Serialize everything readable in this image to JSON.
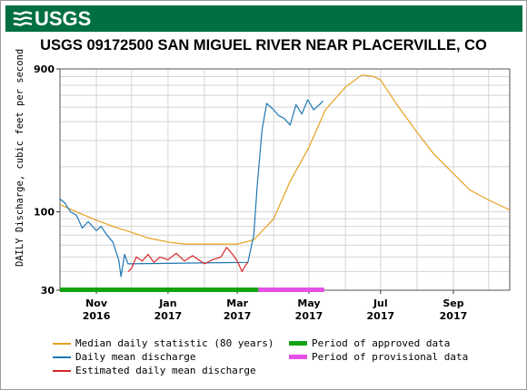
{
  "header": {
    "logo_text": "USGS",
    "title": "USGS 09172500 SAN MIGUEL RIVER NEAR PLACERVILLE, CO"
  },
  "colors": {
    "banner": "#006f41",
    "median": "#e6a01e",
    "mean": "#1f77b4",
    "estimated": "#d62728",
    "approved": "#12a312",
    "provisional": "#e64fe6"
  },
  "chart_data": {
    "type": "line",
    "title": "USGS 09172500 SAN MIGUEL RIVER NEAR PLACERVILLE, CO",
    "ylabel": "DAILY Discharge, cubic feet per second",
    "yscale": "log",
    "ylim": [
      30,
      900
    ],
    "y_ticks": [
      "30",
      "100",
      "900"
    ],
    "x_ticks": [
      {
        "date": "2016-11-01",
        "label1": "Nov",
        "label2": "2016"
      },
      {
        "date": "2017-01-01",
        "label1": "Jan",
        "label2": "2017"
      },
      {
        "date": "2017-03-01",
        "label1": "Mar",
        "label2": "2017"
      },
      {
        "date": "2017-05-01",
        "label1": "May",
        "label2": "2017"
      },
      {
        "date": "2017-07-01",
        "label1": "Jul",
        "label2": "2017"
      },
      {
        "date": "2017-09-01",
        "label1": "Sep",
        "label2": "2017"
      }
    ],
    "xlim": [
      "2016-10-01",
      "2017-10-19"
    ],
    "grid": true,
    "legend_position": "bottom",
    "series": [
      {
        "name": "Median daily statistic (80 years)",
        "color": "#e6a01e",
        "points": [
          [
            "2016-10-01",
            112
          ],
          [
            "2016-10-15",
            100
          ],
          [
            "2016-11-01",
            88
          ],
          [
            "2016-11-15",
            80
          ],
          [
            "2016-12-01",
            73
          ],
          [
            "2016-12-15",
            67
          ],
          [
            "2017-01-01",
            63
          ],
          [
            "2017-01-15",
            61
          ],
          [
            "2017-02-01",
            61
          ],
          [
            "2017-02-15",
            61
          ],
          [
            "2017-03-01",
            61
          ],
          [
            "2017-03-15",
            65
          ],
          [
            "2017-04-01",
            90
          ],
          [
            "2017-04-15",
            160
          ],
          [
            "2017-05-01",
            270
          ],
          [
            "2017-05-15",
            480
          ],
          [
            "2017-06-01",
            680
          ],
          [
            "2017-06-15",
            820
          ],
          [
            "2017-06-25",
            800
          ],
          [
            "2017-07-01",
            760
          ],
          [
            "2017-07-15",
            520
          ],
          [
            "2017-08-01",
            340
          ],
          [
            "2017-08-15",
            245
          ],
          [
            "2017-09-01",
            180
          ],
          [
            "2017-09-15",
            140
          ],
          [
            "2017-10-01",
            120
          ],
          [
            "2017-10-19",
            103
          ]
        ]
      },
      {
        "name": "Daily mean discharge",
        "color": "#1f77b4",
        "points": [
          [
            "2016-10-01",
            122
          ],
          [
            "2016-10-05",
            115
          ],
          [
            "2016-10-10",
            100
          ],
          [
            "2016-10-15",
            95
          ],
          [
            "2016-10-20",
            78
          ],
          [
            "2016-10-25",
            86
          ],
          [
            "2016-11-01",
            75
          ],
          [
            "2016-11-05",
            80
          ],
          [
            "2016-11-10",
            70
          ],
          [
            "2016-11-15",
            63
          ],
          [
            "2016-11-20",
            48
          ],
          [
            "2016-11-22",
            37
          ],
          [
            "2016-11-25",
            52
          ],
          [
            "2016-11-28",
            45
          ],
          [
            "2017-03-10",
            46
          ],
          [
            "2017-03-15",
            70
          ],
          [
            "2017-03-18",
            150
          ],
          [
            "2017-03-22",
            350
          ],
          [
            "2017-03-26",
            530
          ],
          [
            "2017-04-01",
            480
          ],
          [
            "2017-04-05",
            440
          ],
          [
            "2017-04-10",
            420
          ],
          [
            "2017-04-15",
            380
          ],
          [
            "2017-04-20",
            520
          ],
          [
            "2017-04-25",
            450
          ],
          [
            "2017-04-30",
            560
          ],
          [
            "2017-05-05",
            480
          ],
          [
            "2017-05-10",
            520
          ],
          [
            "2017-05-13",
            550
          ]
        ]
      },
      {
        "name": "Estimated daily mean discharge",
        "color": "#d62728",
        "points": [
          [
            "2016-11-28",
            40
          ],
          [
            "2016-12-01",
            42
          ],
          [
            "2016-12-05",
            50
          ],
          [
            "2016-12-10",
            47
          ],
          [
            "2016-12-15",
            52
          ],
          [
            "2016-12-20",
            46
          ],
          [
            "2016-12-25",
            50
          ],
          [
            "2017-01-01",
            48
          ],
          [
            "2017-01-08",
            53
          ],
          [
            "2017-01-15",
            47
          ],
          [
            "2017-01-22",
            51
          ],
          [
            "2017-02-01",
            45
          ],
          [
            "2017-02-08",
            48
          ],
          [
            "2017-02-15",
            50
          ],
          [
            "2017-02-20",
            58
          ],
          [
            "2017-02-25",
            52
          ],
          [
            "2017-03-01",
            47
          ],
          [
            "2017-03-05",
            40
          ],
          [
            "2017-03-08",
            44
          ],
          [
            "2017-03-10",
            46
          ]
        ]
      }
    ],
    "periods": [
      {
        "name": "Period of approved data",
        "color": "#12a312",
        "start": "2016-10-01",
        "end": "2017-03-19"
      },
      {
        "name": "Period of provisional data",
        "color": "#e64fe6",
        "start": "2017-03-19",
        "end": "2017-05-14"
      }
    ]
  }
}
